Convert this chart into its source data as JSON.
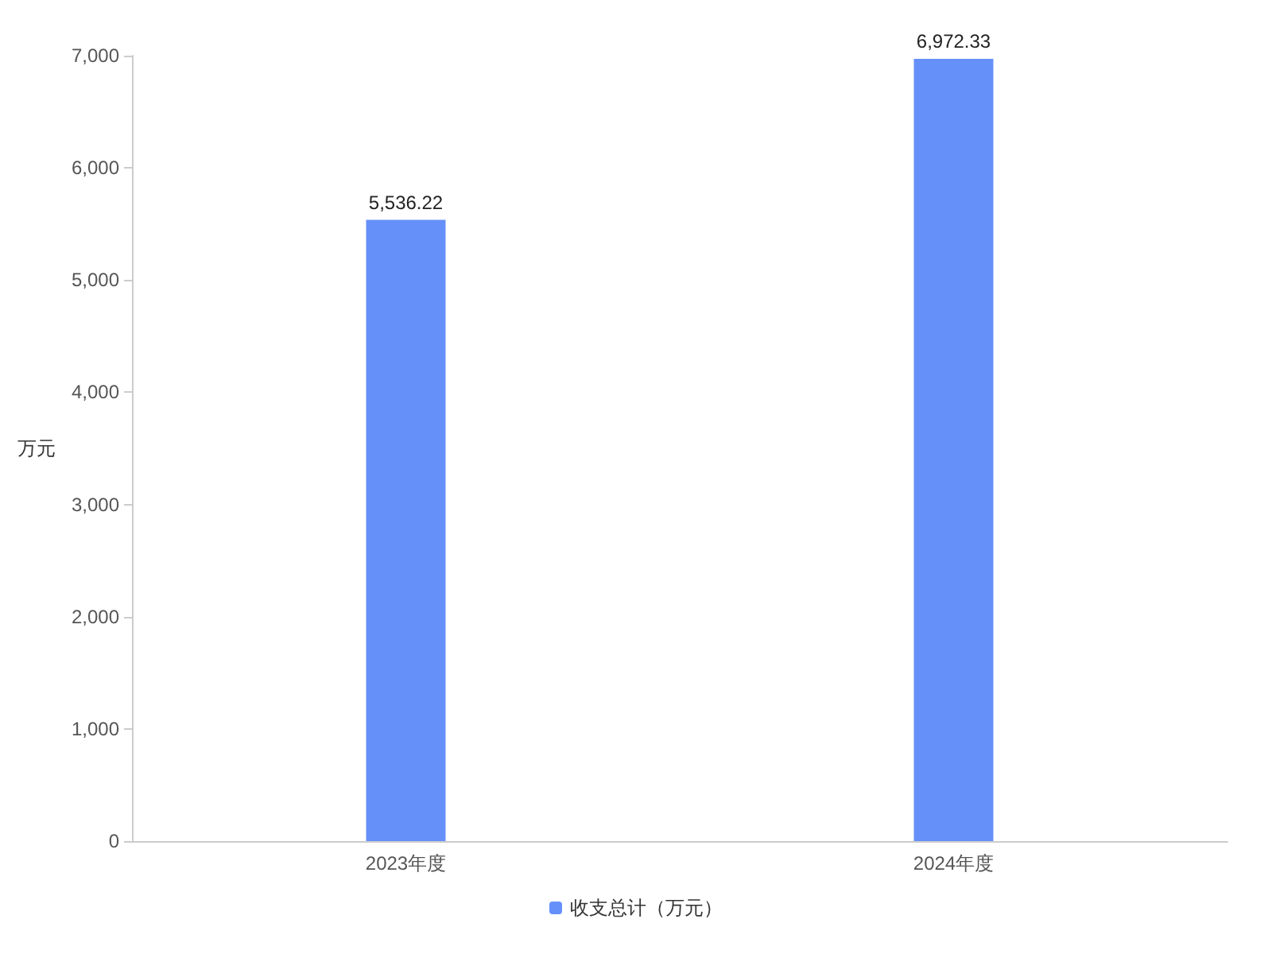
{
  "chart_data": {
    "type": "bar",
    "ylabel": "万元",
    "categories": [
      "2023年度",
      "2024年度"
    ],
    "series": [
      {
        "name": "收支总计（万元）",
        "color": "#6690f9",
        "values": [
          5536.22,
          6972.33
        ],
        "value_labels": [
          "5,536.22",
          "6,972.33"
        ]
      }
    ],
    "ylim": [
      0,
      7000
    ],
    "yticks": [
      0,
      {
        "value": 1000,
        "label": "1,000"
      },
      {
        "value": 2000,
        "label": "2,000"
      },
      {
        "value": 3000,
        "label": "3,000"
      },
      {
        "value": 4000,
        "label": "4,000"
      },
      {
        "value": 5000,
        "label": "5,000"
      },
      {
        "value": 6000,
        "label": "6,000"
      },
      {
        "value": 7000,
        "label": "7,000"
      }
    ],
    "grid": false,
    "legend": "bottom"
  }
}
